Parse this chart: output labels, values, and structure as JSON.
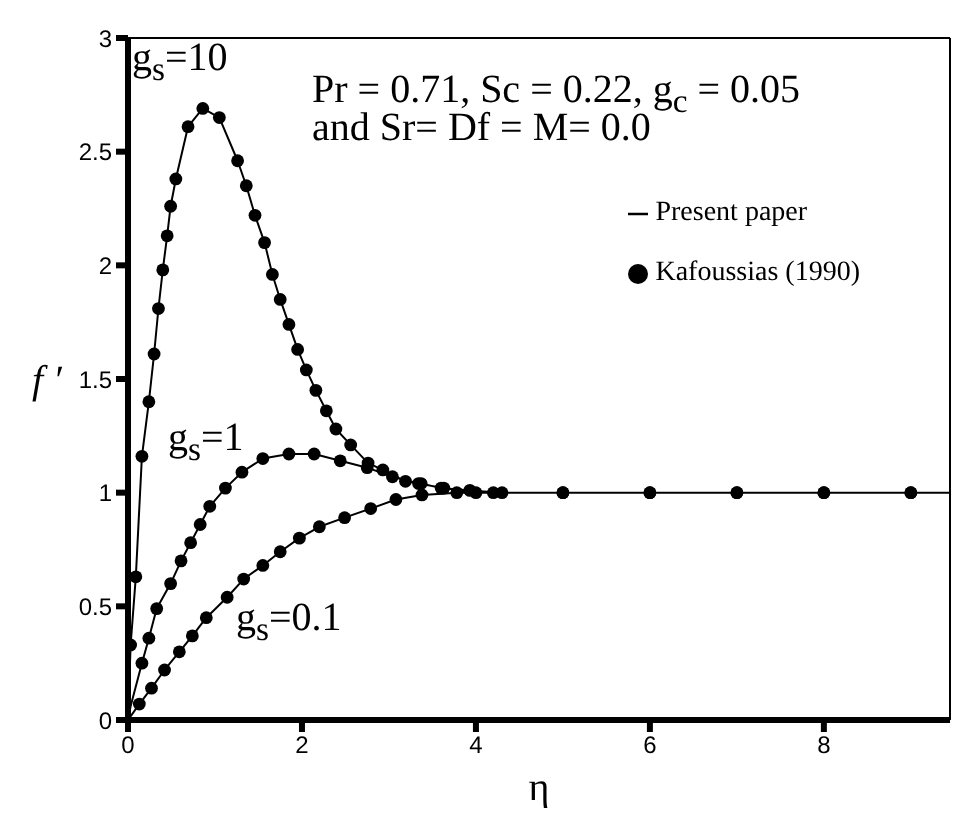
{
  "chart_data": {
    "type": "line",
    "xlabel": "η",
    "ylabel": "f ′",
    "xlim": [
      0,
      9.45
    ],
    "xticks": [
      0,
      2,
      4,
      6,
      8
    ],
    "ylim": [
      0,
      3
    ],
    "yticks": [
      0,
      0.5,
      1,
      1.5,
      2,
      2.5,
      3
    ],
    "grid": false,
    "legend": "top right",
    "series": [
      {
        "name": "Present paper",
        "color": "#000000",
        "x": [
          0,
          0.03,
          0.09,
          0.16,
          0.24,
          0.3,
          0.35,
          0.4,
          0.45,
          0.49,
          0.55,
          0.69,
          0.86,
          1.05,
          1.26,
          1.36,
          1.46,
          1.57,
          1.66,
          1.75,
          1.85,
          1.95,
          2.05,
          2.16,
          2.28,
          2.39,
          2.56,
          2.76,
          2.93,
          3.19,
          3.37,
          3.6,
          3.93,
          4.3,
          5,
          6,
          7,
          8,
          9,
          9.45,
          null,
          0,
          0.03,
          0.16,
          0.24,
          0.33,
          0.49,
          0.61,
          0.72,
          0.83,
          0.94,
          1.12,
          1.31,
          1.55,
          1.85,
          2.14,
          2.44,
          2.75,
          3.04,
          3.34,
          3.63,
          4,
          5,
          6,
          7,
          8,
          9,
          9.45,
          null,
          0,
          0.13,
          0.27,
          0.42,
          0.59,
          0.74,
          0.9,
          1.14,
          1.33,
          1.55,
          1.75,
          1.97,
          2.2,
          2.49,
          2.79,
          3.08,
          3.38,
          3.78,
          4.2,
          5,
          6,
          7,
          8,
          9,
          9.45
        ],
        "values": [
          0,
          0.33,
          0.63,
          1.16,
          1.4,
          1.61,
          1.81,
          1.98,
          2.13,
          2.26,
          2.38,
          2.61,
          2.69,
          2.65,
          2.46,
          2.35,
          2.22,
          2.1,
          1.96,
          1.85,
          1.74,
          1.63,
          1.54,
          1.45,
          1.36,
          1.28,
          1.21,
          1.13,
          1.1,
          1.05,
          1.04,
          1.02,
          1.01,
          1,
          1,
          1,
          1,
          1,
          1,
          1,
          null,
          0,
          0.06,
          0.25,
          0.36,
          0.49,
          0.6,
          0.7,
          0.78,
          0.86,
          0.94,
          1.02,
          1.09,
          1.15,
          1.17,
          1.17,
          1.14,
          1.11,
          1.07,
          1.04,
          1.02,
          1,
          1,
          1,
          1,
          1,
          1,
          1,
          null,
          0,
          0.07,
          0.14,
          0.22,
          0.3,
          0.37,
          0.45,
          0.54,
          0.62,
          0.68,
          0.74,
          0.8,
          0.85,
          0.89,
          0.93,
          0.97,
          0.99,
          1,
          1,
          1,
          1,
          1,
          1,
          1,
          1
        ]
      },
      {
        "type": "scatter",
        "name": "Kafoussias (1990)",
        "color": "#000000",
        "x": [
          0.03,
          0.09,
          0.16,
          0.24,
          0.3,
          0.35,
          0.4,
          0.45,
          0.49,
          0.55,
          0.69,
          0.86,
          1.05,
          1.26,
          1.36,
          1.46,
          1.57,
          1.66,
          1.75,
          1.85,
          1.95,
          2.05,
          2.16,
          2.28,
          2.39,
          2.56,
          2.76,
          2.93,
          3.19,
          3.37,
          3.6,
          3.93,
          4.3,
          5,
          6,
          7,
          8,
          9,
          0.16,
          0.24,
          0.33,
          0.49,
          0.61,
          0.72,
          0.83,
          0.94,
          1.12,
          1.31,
          1.55,
          1.85,
          2.14,
          2.44,
          2.75,
          3.04,
          3.34,
          3.63,
          4,
          5,
          6,
          7,
          8,
          9,
          0.13,
          0.27,
          0.42,
          0.59,
          0.74,
          0.9,
          1.14,
          1.33,
          1.55,
          1.75,
          1.97,
          2.2,
          2.49,
          2.79,
          3.08,
          3.38,
          3.78,
          4.2
        ],
        "values": [
          0.33,
          0.63,
          1.16,
          1.4,
          1.61,
          1.81,
          1.98,
          2.13,
          2.26,
          2.38,
          2.61,
          2.69,
          2.65,
          2.46,
          2.35,
          2.22,
          2.1,
          1.96,
          1.85,
          1.74,
          1.63,
          1.54,
          1.45,
          1.36,
          1.28,
          1.21,
          1.13,
          1.1,
          1.05,
          1.04,
          1.02,
          1.01,
          1,
          1,
          1,
          1,
          1,
          1,
          0.25,
          0.36,
          0.49,
          0.6,
          0.7,
          0.78,
          0.86,
          0.94,
          1.02,
          1.09,
          1.15,
          1.17,
          1.17,
          1.14,
          1.11,
          1.07,
          1.04,
          1.02,
          1,
          1,
          1,
          1,
          1,
          1,
          0.07,
          0.14,
          0.22,
          0.3,
          0.37,
          0.45,
          0.54,
          0.62,
          0.68,
          0.74,
          0.8,
          0.85,
          0.89,
          0.93,
          0.97,
          0.99,
          1,
          1
        ]
      }
    ],
    "annotations": [
      "g$_{s}$=10",
      "g$_{s}$=1",
      "g$_{s}$=0.1",
      "Pr = 0.71, Sc = 0.22, g$_{c}$ = 0.05",
      "and Sr= Df = M= 0.0"
    ]
  }
}
